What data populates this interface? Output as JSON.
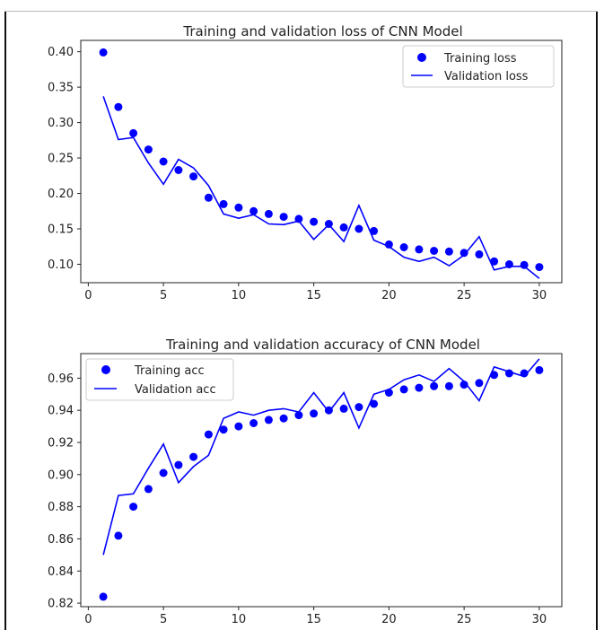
{
  "chart_data": [
    {
      "type": "line",
      "title": "Training and validation loss of CNN Model",
      "xlabel": "",
      "ylabel": "",
      "xlim": [
        -0.5,
        31.5
      ],
      "ylim": [
        0.074,
        0.416
      ],
      "xticks": [
        0,
        5,
        10,
        15,
        20,
        25,
        30
      ],
      "yticks": [
        0.1,
        0.15,
        0.2,
        0.25,
        0.3,
        0.35,
        0.4
      ],
      "ytick_labels": [
        "0.10",
        "0.15",
        "0.20",
        "0.25",
        "0.30",
        "0.35",
        "0.40"
      ],
      "legend_position": "top-right",
      "x": [
        1,
        2,
        3,
        4,
        5,
        6,
        7,
        8,
        9,
        10,
        11,
        12,
        13,
        14,
        15,
        16,
        17,
        18,
        19,
        20,
        21,
        22,
        23,
        24,
        25,
        26,
        27,
        28,
        29,
        30
      ],
      "series": [
        {
          "name": "Training loss",
          "style": "dots",
          "color": "#0000ff",
          "values": [
            0.399,
            0.322,
            0.285,
            0.262,
            0.245,
            0.233,
            0.224,
            0.194,
            0.185,
            0.18,
            0.175,
            0.171,
            0.167,
            0.164,
            0.16,
            0.157,
            0.152,
            0.15,
            0.147,
            0.128,
            0.124,
            0.121,
            0.119,
            0.118,
            0.116,
            0.114,
            0.104,
            0.1,
            0.099,
            0.096
          ]
        },
        {
          "name": "Validation loss",
          "style": "line",
          "color": "#0000ff",
          "values": [
            0.337,
            0.276,
            0.279,
            0.243,
            0.213,
            0.248,
            0.236,
            0.211,
            0.171,
            0.165,
            0.17,
            0.157,
            0.156,
            0.161,
            0.135,
            0.156,
            0.132,
            0.183,
            0.134,
            0.125,
            0.11,
            0.104,
            0.11,
            0.098,
            0.113,
            0.139,
            0.092,
            0.097,
            0.097,
            0.08
          ]
        }
      ]
    },
    {
      "type": "line",
      "title": "Training and validation accuracy of CNN Model",
      "xlabel": "",
      "ylabel": "",
      "xlim": [
        -0.5,
        31.5
      ],
      "ylim": [
        0.8178,
        0.9753
      ],
      "xticks": [
        0,
        5,
        10,
        15,
        20,
        25,
        30
      ],
      "yticks": [
        0.82,
        0.84,
        0.86,
        0.88,
        0.9,
        0.92,
        0.94,
        0.96
      ],
      "ytick_labels": [
        "0.82",
        "0.84",
        "0.86",
        "0.88",
        "0.90",
        "0.92",
        "0.94",
        "0.96"
      ],
      "legend_position": "top-left",
      "x": [
        1,
        2,
        3,
        4,
        5,
        6,
        7,
        8,
        9,
        10,
        11,
        12,
        13,
        14,
        15,
        16,
        17,
        18,
        19,
        20,
        21,
        22,
        23,
        24,
        25,
        26,
        27,
        28,
        29,
        30
      ],
      "series": [
        {
          "name": "Training acc",
          "style": "dots",
          "color": "#0000ff",
          "values": [
            0.824,
            0.862,
            0.88,
            0.891,
            0.901,
            0.906,
            0.911,
            0.925,
            0.928,
            0.93,
            0.932,
            0.934,
            0.935,
            0.937,
            0.938,
            0.94,
            0.941,
            0.942,
            0.944,
            0.951,
            0.953,
            0.954,
            0.955,
            0.955,
            0.956,
            0.957,
            0.962,
            0.963,
            0.963,
            0.965
          ]
        },
        {
          "name": "Validation acc",
          "style": "line",
          "color": "#0000ff",
          "values": [
            0.85,
            0.887,
            0.888,
            0.904,
            0.919,
            0.895,
            0.905,
            0.912,
            0.935,
            0.939,
            0.937,
            0.94,
            0.941,
            0.939,
            0.951,
            0.939,
            0.951,
            0.929,
            0.95,
            0.953,
            0.959,
            0.962,
            0.958,
            0.966,
            0.958,
            0.946,
            0.967,
            0.964,
            0.961,
            0.972
          ]
        }
      ]
    }
  ]
}
